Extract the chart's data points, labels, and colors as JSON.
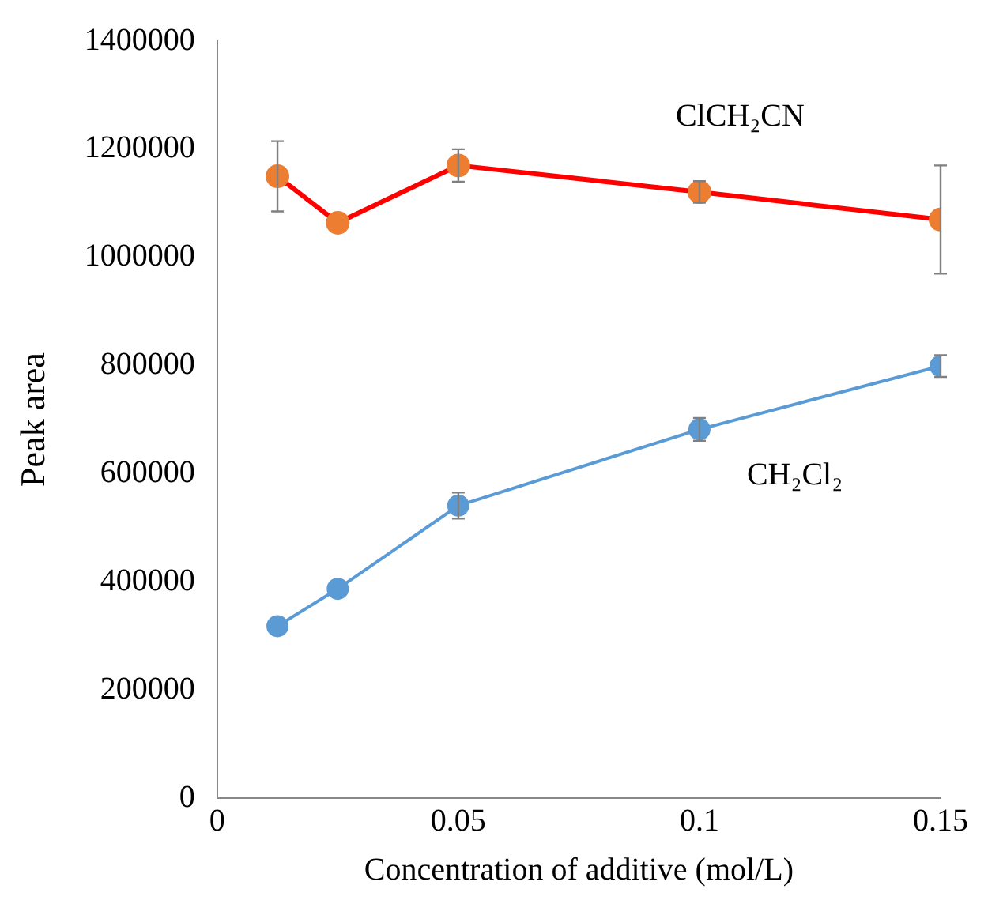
{
  "chart_data": {
    "type": "line",
    "xlabel": "Concentration of additive (mol/L)",
    "ylabel": "Peak area",
    "x": [
      0.0125,
      0.025,
      0.05,
      0.1,
      0.15
    ],
    "series": [
      {
        "name": "ClCH₂CN",
        "color": "#ff0000",
        "values": [
          1150000,
          1064000,
          1170000,
          1121000,
          1070000
        ],
        "errors": [
          65000,
          null,
          30000,
          20000,
          100000
        ]
      },
      {
        "name": "CH₂Cl₂",
        "color": "#5b9bd5",
        "values": [
          318000,
          387000,
          541000,
          682000,
          799000
        ],
        "errors": [
          null,
          null,
          24000,
          21000,
          20000
        ]
      }
    ],
    "xlim": [
      0,
      0.15
    ],
    "xticks": [
      0,
      0.05,
      0.1,
      0.15
    ],
    "ylim": [
      0,
      1400000
    ],
    "yticks": [
      0,
      200000,
      400000,
      600000,
      800000,
      1000000,
      1200000,
      1400000
    ],
    "grid": false,
    "legend": false,
    "marker": "circle",
    "line_style": "solid"
  }
}
